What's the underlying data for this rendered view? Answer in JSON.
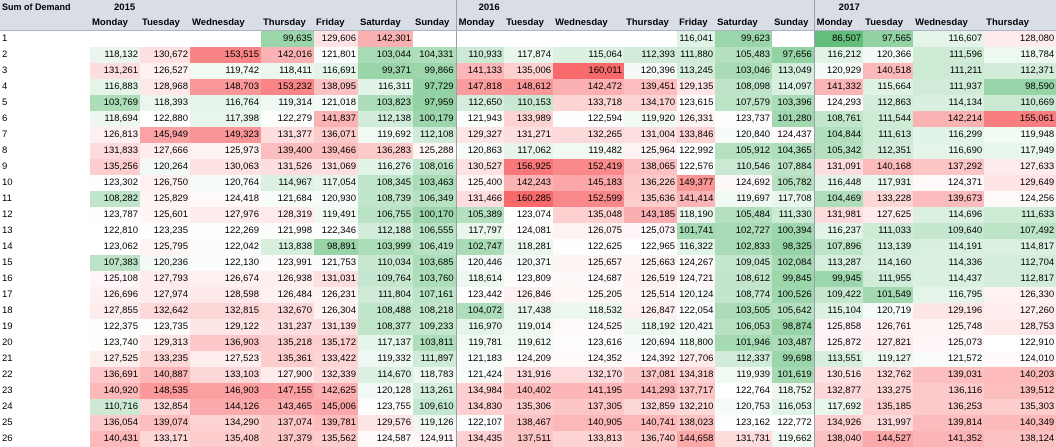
{
  "pivot": {
    "corner_label": "Sum of Demand",
    "years": [
      "2015",
      "2016",
      "2017"
    ],
    "days_2015": [
      "Monday",
      "Tuesday",
      "Wednesday",
      "Thursday",
      "Friday",
      "Saturday",
      "Sunday"
    ],
    "days_2016": [
      "Monday",
      "Tuesday",
      "Wednesday",
      "Thursday",
      "Friday",
      "Saturday",
      "Sunday"
    ],
    "days_2017": [
      "Monday",
      "Tuesday",
      "Wednesday",
      "Thursday"
    ],
    "colors": {
      "header_bg": "#d8dde6",
      "high": "#f8696b",
      "mid": "#ffffff",
      "low": "#63be7b"
    },
    "rows": [
      {
        "week": "1",
        "v2015": [
          "",
          "",
          "",
          "99,635",
          "129,606",
          "142,301",
          ""
        ],
        "v2016": [
          "",
          "",
          "",
          "",
          "116,041",
          "99,623",
          ""
        ],
        "v2017": [
          "86,507",
          "97,565",
          "116,607",
          "128,080"
        ]
      },
      {
        "week": "2",
        "v2015": [
          "118,132",
          "130,672",
          "153,515",
          "142,016",
          "121,801",
          "103,044",
          "104,331"
        ],
        "v2016": [
          "110,933",
          "117,874",
          "115,064",
          "112,393",
          "111,880",
          "105,483",
          "97,656"
        ],
        "v2017": [
          "116,212",
          "120,366",
          "111,596",
          "118,784"
        ]
      },
      {
        "week": "3",
        "v2015": [
          "131,261",
          "126,527",
          "119,742",
          "118,411",
          "116,691",
          "99,371",
          "99,866"
        ],
        "v2016": [
          "141,133",
          "135,006",
          "160,011",
          "120,396",
          "113,245",
          "103,046",
          "113,049"
        ],
        "v2017": [
          "120,929",
          "140,518",
          "111,211",
          "112,371"
        ]
      },
      {
        "week": "4",
        "v2015": [
          "116,883",
          "128,968",
          "148,703",
          "153,232",
          "138,095",
          "116,311",
          "97,729"
        ],
        "v2016": [
          "147,818",
          "148,612",
          "142,472",
          "139,451",
          "129,135",
          "108,098",
          "114,097"
        ],
        "v2017": [
          "141,332",
          "115,664",
          "111,937",
          "98,590"
        ]
      },
      {
        "week": "5",
        "v2015": [
          "103,769",
          "118,393",
          "116,764",
          "119,314",
          "121,018",
          "103,823",
          "97,959"
        ],
        "v2016": [
          "112,650",
          "110,153",
          "133,718",
          "134,170",
          "123,615",
          "107,579",
          "103,396"
        ],
        "v2017": [
          "124,293",
          "112,863",
          "114,134",
          "110,669"
        ]
      },
      {
        "week": "6",
        "v2015": [
          "118,694",
          "122,880",
          "117,398",
          "122,279",
          "141,837",
          "112,138",
          "100,179"
        ],
        "v2016": [
          "121,943",
          "133,989",
          "122,594",
          "119,920",
          "126,331",
          "123,737",
          "101,280"
        ],
        "v2017": [
          "108,761",
          "111,544",
          "142,214",
          "155,061"
        ]
      },
      {
        "week": "7",
        "v2015": [
          "126,813",
          "145,949",
          "149,323",
          "131,377",
          "136,071",
          "119,692",
          "112,108"
        ],
        "v2016": [
          "129,327",
          "131,271",
          "132,265",
          "131,004",
          "133,846",
          "120,840",
          "124,437"
        ],
        "v2017": [
          "104,844",
          "111,613",
          "116,299",
          "119,948"
        ]
      },
      {
        "week": "8",
        "v2015": [
          "131,833",
          "127,666",
          "125,973",
          "139,400",
          "139,466",
          "136,283",
          "125,288"
        ],
        "v2016": [
          "120,863",
          "117,062",
          "119,482",
          "125,964",
          "122,992",
          "105,912",
          "104,365"
        ],
        "v2017": [
          "105,342",
          "112,351",
          "116,690",
          "117,949"
        ]
      },
      {
        "week": "9",
        "v2015": [
          "135,256",
          "120,264",
          "130,063",
          "131,526",
          "131,069",
          "116,276",
          "108,016"
        ],
        "v2016": [
          "130,527",
          "156,925",
          "152,419",
          "138,065",
          "122,576",
          "110,546",
          "107,884"
        ],
        "v2017": [
          "131,091",
          "140,168",
          "137,292",
          "127,633"
        ]
      },
      {
        "week": "10",
        "v2015": [
          "123,302",
          "126,750",
          "120,764",
          "114,967",
          "117,054",
          "108,345",
          "103,463"
        ],
        "v2016": [
          "125,400",
          "142,243",
          "145,183",
          "136,226",
          "149,377",
          "124,692",
          "105,782"
        ],
        "v2017": [
          "116,448",
          "117,931",
          "124,371",
          "129,649"
        ]
      },
      {
        "week": "11",
        "v2015": [
          "108,282",
          "125,829",
          "124,418",
          "121,684",
          "120,930",
          "108,739",
          "106,349"
        ],
        "v2016": [
          "131,466",
          "160,285",
          "152,599",
          "135,636",
          "141,414",
          "119,697",
          "117,708"
        ],
        "v2017": [
          "104,469",
          "133,228",
          "139,673",
          "124,256"
        ]
      },
      {
        "week": "12",
        "v2015": [
          "123,787",
          "125,601",
          "127,976",
          "128,319",
          "119,491",
          "106,755",
          "100,170"
        ],
        "v2016": [
          "105,389",
          "123,074",
          "135,048",
          "143,185",
          "118,190",
          "105,484",
          "111,330"
        ],
        "v2017": [
          "131,981",
          "127,625",
          "114,696",
          "111,633"
        ]
      },
      {
        "week": "13",
        "v2015": [
          "122,810",
          "123,235",
          "122,269",
          "121,998",
          "122,346",
          "112,188",
          "106,555"
        ],
        "v2016": [
          "117,797",
          "124,081",
          "126,075",
          "125,073",
          "101,741",
          "102,727",
          "100,394"
        ],
        "v2017": [
          "116,237",
          "111,033",
          "109,640",
          "107,492"
        ]
      },
      {
        "week": "14",
        "v2015": [
          "123,062",
          "125,795",
          "122,042",
          "113,838",
          "98,891",
          "103,999",
          "106,419"
        ],
        "v2016": [
          "102,747",
          "118,281",
          "122,625",
          "122,965",
          "116,322",
          "102,833",
          "98,325"
        ],
        "v2017": [
          "107,896",
          "113,139",
          "114,191",
          "114,817"
        ]
      },
      {
        "week": "15",
        "v2015": [
          "107,383",
          "120,236",
          "122,130",
          "123,991",
          "121,753",
          "110,034",
          "103,685"
        ],
        "v2016": [
          "120,446",
          "120,371",
          "125,657",
          "125,663",
          "124,267",
          "109,045",
          "102,084"
        ],
        "v2017": [
          "113,287",
          "114,160",
          "114,336",
          "112,704"
        ]
      },
      {
        "week": "16",
        "v2015": [
          "125,108",
          "127,793",
          "126,674",
          "126,938",
          "131,031",
          "109,764",
          "103,760"
        ],
        "v2016": [
          "118,614",
          "123,809",
          "124,687",
          "126,519",
          "124,721",
          "108,612",
          "99,845"
        ],
        "v2017": [
          "99,945",
          "111,955",
          "114,437",
          "112,817"
        ]
      },
      {
        "week": "17",
        "v2015": [
          "126,696",
          "127,974",
          "128,598",
          "126,484",
          "126,231",
          "111,804",
          "107,161"
        ],
        "v2016": [
          "123,442",
          "126,846",
          "125,205",
          "125,514",
          "120,124",
          "108,774",
          "100,526"
        ],
        "v2017": [
          "109,422",
          "101,549",
          "116,795",
          "126,330"
        ]
      },
      {
        "week": "18",
        "v2015": [
          "127,855",
          "132,642",
          "132,815",
          "132,670",
          "126,304",
          "108,488",
          "108,218"
        ],
        "v2016": [
          "104,072",
          "117,438",
          "118,532",
          "126,847",
          "122,054",
          "103,505",
          "105,642"
        ],
        "v2017": [
          "115,104",
          "120,719",
          "129,196",
          "127,260"
        ]
      },
      {
        "week": "19",
        "v2015": [
          "122,375",
          "123,735",
          "129,122",
          "131,237",
          "131,139",
          "108,377",
          "109,233"
        ],
        "v2016": [
          "116,970",
          "119,014",
          "124,525",
          "118,192",
          "120,421",
          "106,053",
          "98,874"
        ],
        "v2017": [
          "125,858",
          "126,761",
          "125,748",
          "128,753"
        ]
      },
      {
        "week": "20",
        "v2015": [
          "123,740",
          "129,313",
          "136,903",
          "135,218",
          "135,172",
          "117,137",
          "103,811"
        ],
        "v2016": [
          "119,781",
          "119,612",
          "123,616",
          "120,694",
          "118,800",
          "101,946",
          "103,487"
        ],
        "v2017": [
          "125,872",
          "127,821",
          "125,073",
          "122,910"
        ]
      },
      {
        "week": "21",
        "v2015": [
          "127,525",
          "133,235",
          "127,523",
          "135,361",
          "133,422",
          "119,332",
          "111,897"
        ],
        "v2016": [
          "121,183",
          "124,209",
          "124,352",
          "124,392",
          "127,706",
          "112,337",
          "99,698"
        ],
        "v2017": [
          "113,551",
          "119,127",
          "121,572",
          "124,010"
        ]
      },
      {
        "week": "22",
        "v2015": [
          "136,691",
          "140,887",
          "133,103",
          "127,900",
          "132,339",
          "114,670",
          "118,783"
        ],
        "v2016": [
          "121,424",
          "131,916",
          "132,170",
          "137,081",
          "134,318",
          "119,939",
          "101,619"
        ],
        "v2017": [
          "130,516",
          "132,762",
          "139,031",
          "140,203"
        ]
      },
      {
        "week": "23",
        "v2015": [
          "140,920",
          "148,535",
          "146,903",
          "147,155",
          "142,625",
          "120,128",
          "113,261"
        ],
        "v2016": [
          "134,984",
          "140,402",
          "141,195",
          "141,293",
          "137,717",
          "122,764",
          "118,752"
        ],
        "v2017": [
          "132,877",
          "133,275",
          "136,116",
          "139,512"
        ]
      },
      {
        "week": "24",
        "v2015": [
          "110,716",
          "132,854",
          "144,126",
          "143,465",
          "145,006",
          "123,755",
          "109,610"
        ],
        "v2016": [
          "134,830",
          "135,306",
          "137,305",
          "132,859",
          "132,210",
          "120,753",
          "116,053"
        ],
        "v2017": [
          "117,692",
          "135,185",
          "136,253",
          "135,303"
        ]
      },
      {
        "week": "25",
        "v2015": [
          "136,054",
          "139,074",
          "134,290",
          "137,074",
          "139,781",
          "129,576",
          "119,126"
        ],
        "v2016": [
          "122,107",
          "138,467",
          "140,905",
          "140,741",
          "138,023",
          "123,162",
          "122,772"
        ],
        "v2017": [
          "134,926",
          "131,997",
          "139,814",
          "140,349"
        ]
      },
      {
        "week": "26",
        "v2015": [
          "140,431",
          "133,171",
          "135,408",
          "137,379",
          "135,562",
          "124,587",
          "124,911"
        ],
        "v2016": [
          "134,435",
          "137,511",
          "133,813",
          "136,740",
          "144,658",
          "131,731",
          "119,662"
        ],
        "v2017": [
          "138,040",
          "144,527",
          "141,352",
          "138,124"
        ]
      }
    ]
  }
}
